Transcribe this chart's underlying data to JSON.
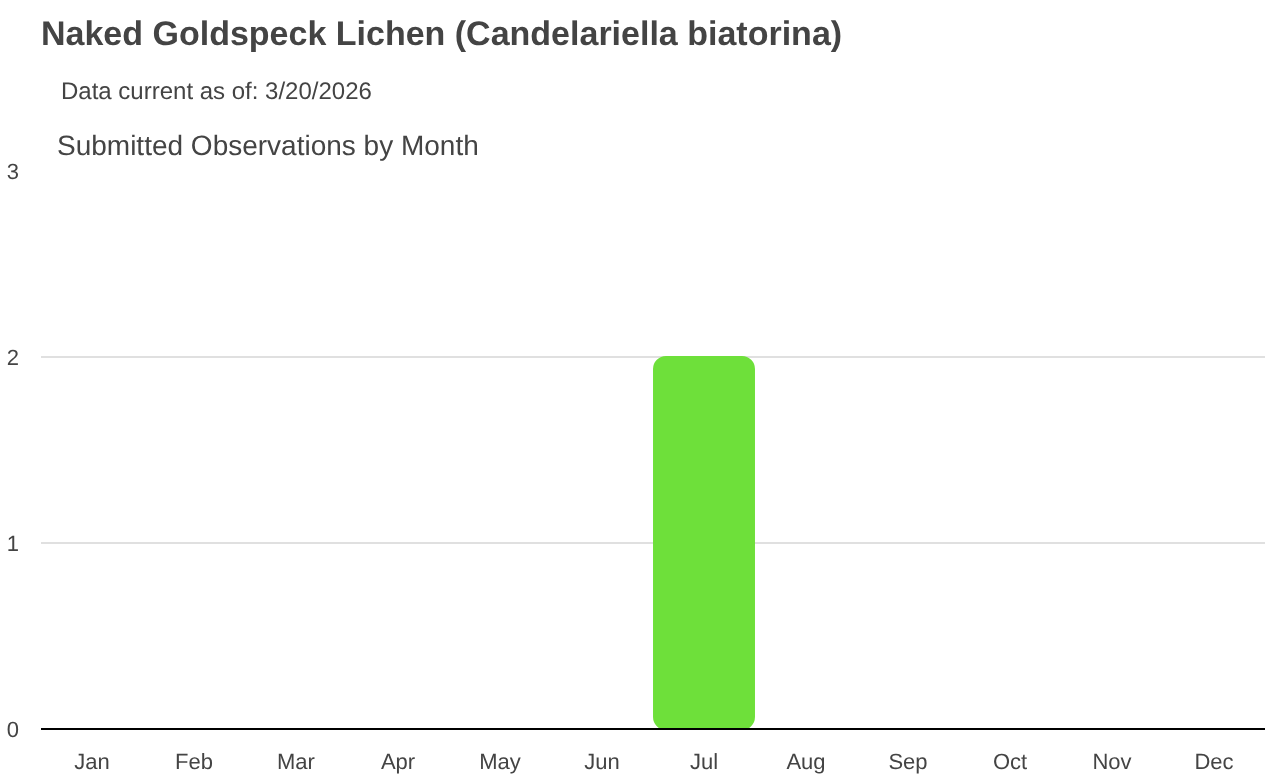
{
  "chart_data": {
    "type": "bar",
    "title": "Naked Goldspeck Lichen   (Candelariella biatorina)",
    "subtitle": "Data current as of: 3/20/2026",
    "annotations": [
      "Submitted Observations by Month"
    ],
    "categories": [
      "Jan",
      "Feb",
      "Mar",
      "Apr",
      "May",
      "Jun",
      "Jul",
      "Aug",
      "Sep",
      "Oct",
      "Nov",
      "Dec"
    ],
    "values": [
      0,
      0,
      0,
      0,
      0,
      0,
      2,
      0,
      0,
      0,
      0,
      0
    ],
    "color": "#6ee03a",
    "ylim": [
      0,
      3
    ],
    "yticks": [
      0,
      1,
      2,
      3
    ],
    "grid": "y"
  }
}
